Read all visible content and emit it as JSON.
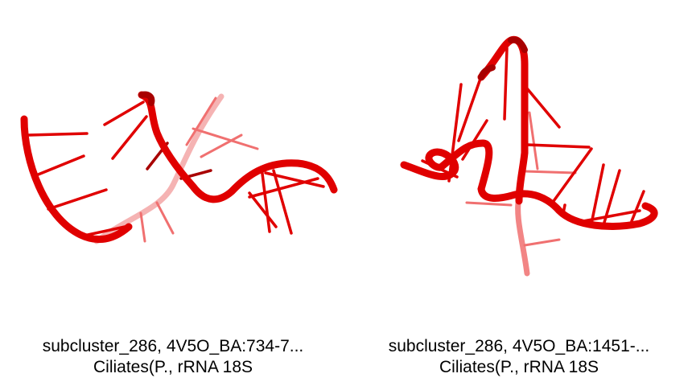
{
  "panels": [
    {
      "caption_line1": "subcluster_286, 4V5O_BA:734-7...",
      "caption_line2": "Ciliates(P., rRNA 18S",
      "image_icon": "rna-ribbon-cartoon-icon"
    },
    {
      "caption_line1": "subcluster_286, 4V5O_BA:1451-...",
      "caption_line2": "Ciliates(P., rRNA 18S",
      "image_icon": "rna-ribbon-cartoon-icon"
    }
  ],
  "colors": {
    "backbone": "#e00000",
    "backbone_dark": "#a80000",
    "backbone_light": "#f08080",
    "background": "#ffffff",
    "text": "#000000"
  }
}
